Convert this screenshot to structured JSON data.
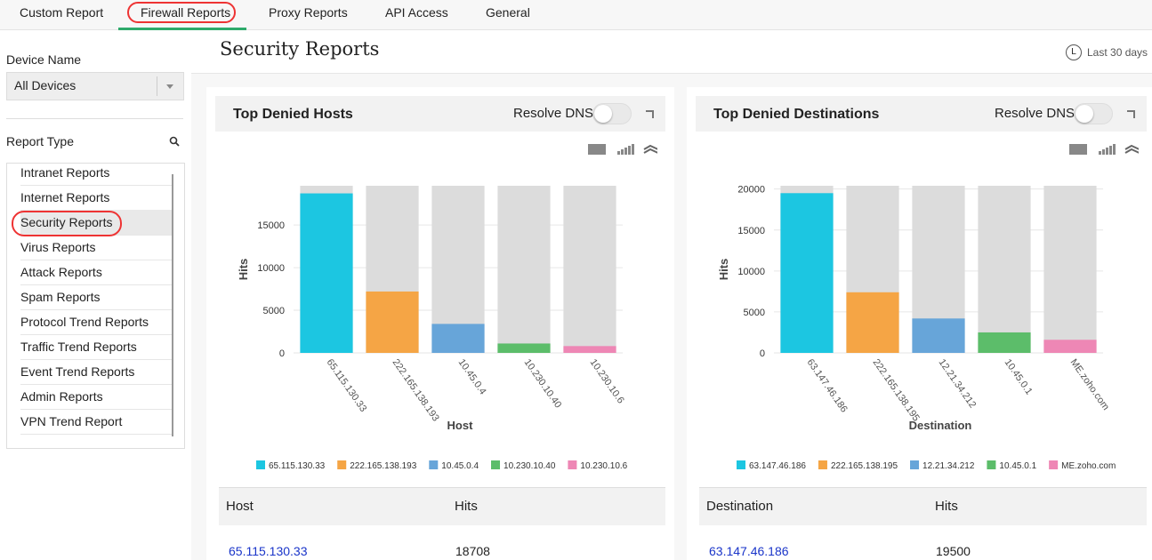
{
  "nav": {
    "tabs": [
      "Custom Report",
      "Firewall Reports",
      "Proxy Reports",
      "API Access",
      "General"
    ]
  },
  "sidebar": {
    "device_label": "Device Name",
    "device_value": "All Devices",
    "report_type_label": "Report Type",
    "report_types": [
      "Intranet Reports",
      "Internet Reports",
      "Security Reports",
      "Virus Reports",
      "Attack Reports",
      "Spam Reports",
      "Protocol Trend Reports",
      "Traffic Trend Reports",
      "Event Trend Reports",
      "Admin Reports",
      "VPN Trend Report"
    ]
  },
  "header": {
    "title": "Security Reports",
    "range_icon": "L",
    "range": "Last 30 days"
  },
  "panels": [
    {
      "title": "Top Denied Hosts",
      "toggle_label": "Resolve DNS",
      "table": {
        "header": [
          "Host",
          "Hits"
        ],
        "rows": [
          [
            "65.115.130.33",
            18708
          ]
        ]
      }
    },
    {
      "title": "Top Denied Destinations",
      "toggle_label": "Resolve DNS",
      "table": {
        "header": [
          "Destination",
          "Hits"
        ],
        "rows": [
          [
            "63.147.46.186",
            19500
          ]
        ]
      }
    }
  ],
  "chart_data": [
    {
      "type": "bar",
      "x_label": "Host",
      "y_label": "Hits",
      "categories": [
        "65.115.130.33",
        "222.165.138.193",
        "10.45.0.4",
        "10.230.10.40",
        "10.230.10.6"
      ],
      "values": [
        18708,
        7200,
        3400,
        1100,
        800
      ],
      "colors": [
        "#1cc6e1",
        "#f5a545",
        "#67a5d9",
        "#5cbd6a",
        "#ee87b5"
      ],
      "ylim": [
        0,
        19600
      ],
      "yticks": [
        0,
        5000,
        10000,
        15000
      ],
      "grid": true,
      "legend": "bottom"
    },
    {
      "type": "bar",
      "x_label": "Destination",
      "y_label": "Hits",
      "categories": [
        "63.147.46.186",
        "222.165.138.195",
        "12.21.34.212",
        "10.45.0.1",
        "ME.zoho.com"
      ],
      "values": [
        19500,
        7400,
        4200,
        2500,
        1600
      ],
      "colors": [
        "#1cc6e1",
        "#f5a545",
        "#67a5d9",
        "#5cbd6a",
        "#ee87b5"
      ],
      "ylim": [
        0,
        20400
      ],
      "yticks": [
        0,
        5000,
        10000,
        15000,
        20000
      ],
      "grid": true,
      "legend": "bottom"
    }
  ]
}
